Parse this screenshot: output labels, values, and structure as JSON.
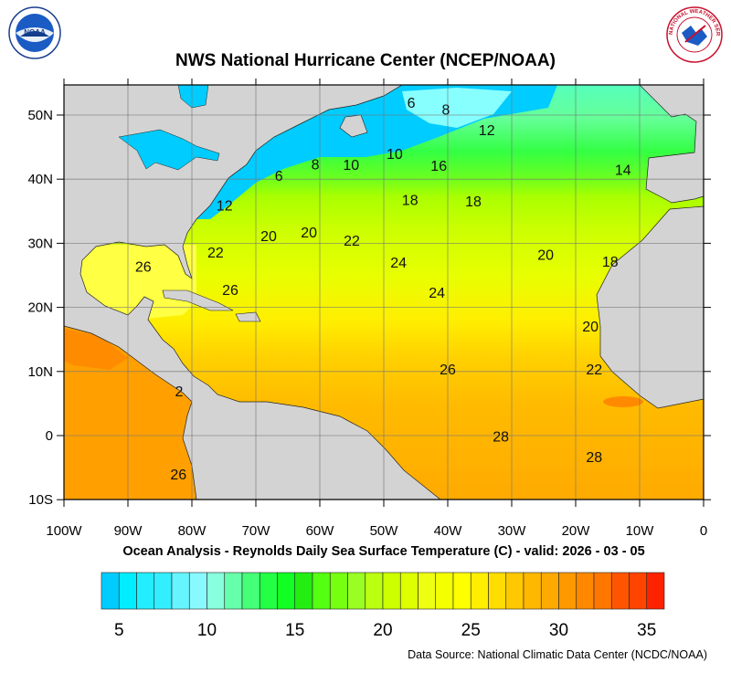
{
  "header": {
    "title": "NWS National Hurricane Center (NCEP/NOAA)",
    "left_logo": "NOAA",
    "right_logo": "NATIONAL WEATHER SERVICE"
  },
  "map": {
    "subtitle": "Ocean Analysis - Reynolds Daily Sea Surface Temperature (C) - valid: 2026 - 03 - 05",
    "lon_range": [
      -100,
      0
    ],
    "lat_range": [
      -10,
      55
    ],
    "grid": true,
    "land_color": "#d3d3d3",
    "x_ticks": [
      {
        "lon": -100,
        "label": "100W"
      },
      {
        "lon": -90,
        "label": "90W"
      },
      {
        "lon": -80,
        "label": "80W"
      },
      {
        "lon": -70,
        "label": "70W"
      },
      {
        "lon": -60,
        "label": "60W"
      },
      {
        "lon": -50,
        "label": "50W"
      },
      {
        "lon": -40,
        "label": "40W"
      },
      {
        "lon": -30,
        "label": "30W"
      },
      {
        "lon": -20,
        "label": "20W"
      },
      {
        "lon": -10,
        "label": "10W"
      },
      {
        "lon": 0,
        "label": "0"
      }
    ],
    "y_ticks": [
      {
        "lat": 50,
        "label": "50N"
      },
      {
        "lat": 40,
        "label": "40N"
      },
      {
        "lat": 30,
        "label": "30N"
      },
      {
        "lat": 20,
        "label": "20N"
      },
      {
        "lat": 10,
        "label": "10N"
      },
      {
        "lat": 0,
        "label": "0"
      },
      {
        "lat": -10,
        "label": "10S"
      }
    ],
    "contour_labels": [
      {
        "text": "6",
        "lon": -45.7,
        "lat": 52.0
      },
      {
        "text": "8",
        "lon": -40.3,
        "lat": 50.9
      },
      {
        "text": "12",
        "lon": -33.9,
        "lat": 47.7
      },
      {
        "text": "10",
        "lon": -48.3,
        "lat": 44.0
      },
      {
        "text": "16",
        "lon": -41.4,
        "lat": 42.2
      },
      {
        "text": "14",
        "lon": -12.6,
        "lat": 41.5
      },
      {
        "text": "10",
        "lon": -55.1,
        "lat": 42.3
      },
      {
        "text": "8",
        "lon": -60.7,
        "lat": 42.4
      },
      {
        "text": "6",
        "lon": -66.4,
        "lat": 40.6
      },
      {
        "text": "12",
        "lon": -74.9,
        "lat": 36.0
      },
      {
        "text": "18",
        "lon": -45.9,
        "lat": 36.8
      },
      {
        "text": "18",
        "lon": -36.0,
        "lat": 36.6
      },
      {
        "text": "20",
        "lon": -68.0,
        "lat": 31.2
      },
      {
        "text": "20",
        "lon": -61.7,
        "lat": 31.8
      },
      {
        "text": "22",
        "lon": -55.0,
        "lat": 30.5
      },
      {
        "text": "22",
        "lon": -76.3,
        "lat": 28.6
      },
      {
        "text": "26",
        "lon": -87.6,
        "lat": 26.4
      },
      {
        "text": "24",
        "lon": -47.7,
        "lat": 27.1
      },
      {
        "text": "20",
        "lon": -24.7,
        "lat": 28.3
      },
      {
        "text": "18",
        "lon": -14.6,
        "lat": 27.2
      },
      {
        "text": "24",
        "lon": -41.7,
        "lat": 22.4
      },
      {
        "text": "26",
        "lon": -74.0,
        "lat": 22.8
      },
      {
        "text": "20",
        "lon": -17.7,
        "lat": 17.1
      },
      {
        "text": "26",
        "lon": -40.0,
        "lat": 10.4
      },
      {
        "text": "22",
        "lon": -17.1,
        "lat": 10.4
      },
      {
        "text": "2",
        "lon": -82.0,
        "lat": 7.0
      },
      {
        "text": "28",
        "lon": -31.7,
        "lat": -0.1
      },
      {
        "text": "28",
        "lon": -17.1,
        "lat": -3.3
      },
      {
        "text": "26",
        "lon": -82.1,
        "lat": -6.0
      }
    ]
  },
  "colorbar": {
    "min": 4,
    "max": 36,
    "labels": [
      5,
      10,
      15,
      20,
      25,
      30,
      35
    ],
    "colors": [
      "#00ccff",
      "#00eeff",
      "#22eeff",
      "#33eeff",
      "#66f5ff",
      "#88faff",
      "#88ffdd",
      "#66ffaa",
      "#44ff77",
      "#22ff44",
      "#11ff22",
      "#22ee11",
      "#55ff11",
      "#77ff11",
      "#99ff22",
      "#bbff11",
      "#ccff00",
      "#ddff00",
      "#eeff11",
      "#f4ff00",
      "#ffff00",
      "#ffee00",
      "#ffdd00",
      "#ffc800",
      "#ffb800",
      "#ffaa00",
      "#ff9900",
      "#ff8800",
      "#ff7700",
      "#ff5500",
      "#ff4400",
      "#ff2200"
    ]
  },
  "footer": {
    "source": "Data Source: National Climatic Data Center (NCDC/NOAA)"
  }
}
